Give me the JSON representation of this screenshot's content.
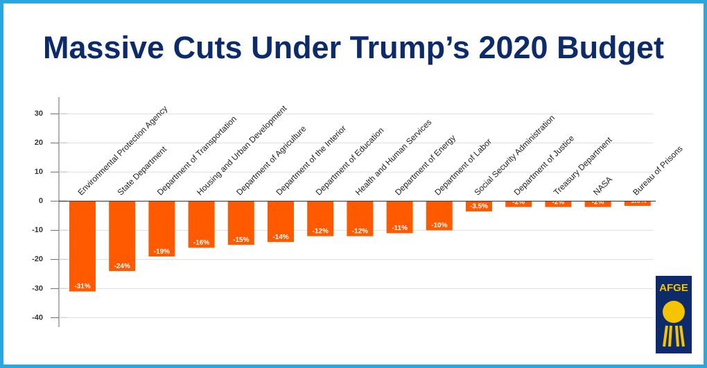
{
  "chart_data": {
    "type": "bar",
    "title": "Massive Cuts Under Trump’s 2020 Budget",
    "categories": [
      "Environmental Protection Agency",
      "State Department",
      "Department of Transportation",
      "Housing and Urban Development",
      "Department of Agriculture",
      "Department of the Interior",
      "Department of Education",
      "Health and Human Services",
      "Department of Energy",
      "Department of Labor",
      "Social Security Administration",
      "Department of Justice",
      "Treasury Department",
      "NASA",
      "Bureau of Prisons"
    ],
    "values": [
      -31,
      -24,
      -19,
      -16,
      -15,
      -14,
      -12,
      -12,
      -11,
      -10,
      -3.5,
      -2,
      -2,
      -2,
      -1.6
    ],
    "value_labels": [
      "-31%",
      "-24%",
      "-19%",
      "-16%",
      "-15%",
      "-14%",
      "-12%",
      "-12%",
      "-11%",
      "-10%",
      "-3.5%",
      "-2%",
      "-2%",
      "-2%",
      "-1.6%"
    ],
    "color": "#ff5a00",
    "ylim": [
      -43,
      36
    ],
    "yticks": [
      30,
      20,
      10,
      0,
      -10,
      -20,
      -30,
      -40
    ],
    "grid": true,
    "logo": "AFGE"
  }
}
